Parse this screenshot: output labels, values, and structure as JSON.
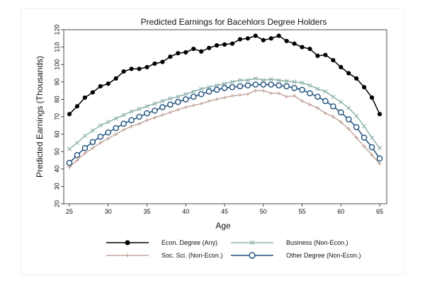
{
  "chart_data": {
    "type": "line",
    "title": "Predicted Earnings for Bacehlors Degree Holders",
    "xlabel": "Age",
    "ylabel": "Predicted Earnings (Thousands)",
    "xlim": [
      25,
      65
    ],
    "ylim": [
      20,
      120
    ],
    "xticks": [
      25,
      30,
      35,
      40,
      45,
      50,
      55,
      60,
      65
    ],
    "yticks": [
      20,
      30,
      40,
      50,
      60,
      70,
      80,
      90,
      100,
      110,
      120
    ],
    "grid": false,
    "legend_position": "bottom",
    "x": [
      25,
      26,
      27,
      28,
      29,
      30,
      31,
      32,
      33,
      34,
      35,
      36,
      37,
      38,
      39,
      40,
      41,
      42,
      43,
      44,
      45,
      46,
      47,
      48,
      49,
      50,
      51,
      52,
      53,
      54,
      55,
      56,
      57,
      58,
      59,
      60,
      61,
      62,
      63,
      64,
      65
    ],
    "series": [
      {
        "name": "Econ. Degree (Any)",
        "color": "#000000",
        "marker": "filled-circle",
        "values": [
          71.5,
          76,
          81,
          84,
          87.5,
          89,
          92,
          96,
          97.5,
          97.5,
          98.5,
          100.5,
          101.5,
          104.5,
          106.5,
          107,
          109,
          107.5,
          109.5,
          111,
          111.5,
          112,
          114.5,
          115,
          116.5,
          114,
          115,
          116.5,
          113.5,
          112,
          110,
          109,
          105,
          105.5,
          102.5,
          98.5,
          95,
          92,
          87,
          81,
          71.5
        ]
      },
      {
        "name": "Business (Non-Econ.)",
        "color": "#8fb3ad",
        "marker": "x",
        "values": [
          51.5,
          55,
          59,
          62,
          65,
          67,
          69,
          71,
          73,
          74.5,
          76,
          77.5,
          79,
          80.5,
          81.5,
          83,
          84.5,
          86,
          87,
          88,
          89,
          90,
          91,
          91,
          92,
          91,
          91.5,
          91,
          90.5,
          90,
          89.5,
          88,
          86,
          84.5,
          81.5,
          78.5,
          75,
          70.5,
          64.5,
          58,
          52
        ]
      },
      {
        "name": "Soc. Sci. (Non-Econ.)",
        "color": "#c4a79f",
        "marker": "plus",
        "values": [
          41,
          45,
          49,
          52,
          55,
          57.5,
          60,
          62.5,
          64.5,
          66,
          68,
          69.5,
          71,
          72.5,
          74,
          75.5,
          76.5,
          77.5,
          79,
          80,
          81,
          82,
          82.5,
          83,
          85,
          85,
          83.5,
          83.5,
          81.5,
          82,
          79,
          77,
          75,
          72,
          70,
          67,
          63,
          58,
          53,
          48,
          43
        ]
      },
      {
        "name": "Other Degree (Non-Econ.)",
        "color": "#1d4f7c",
        "marker": "open-circle",
        "values": [
          43.5,
          48,
          52,
          55.5,
          58.5,
          61,
          63.5,
          66,
          68,
          70,
          72,
          73.5,
          75.5,
          77,
          78.5,
          80,
          81.5,
          83,
          84.5,
          85.5,
          86.5,
          87,
          87.5,
          88,
          88.5,
          88.5,
          88.5,
          88,
          87.5,
          86.5,
          85.5,
          83.5,
          81.5,
          79,
          76,
          72.5,
          68.5,
          64,
          58,
          52.5,
          46
        ]
      }
    ]
  }
}
